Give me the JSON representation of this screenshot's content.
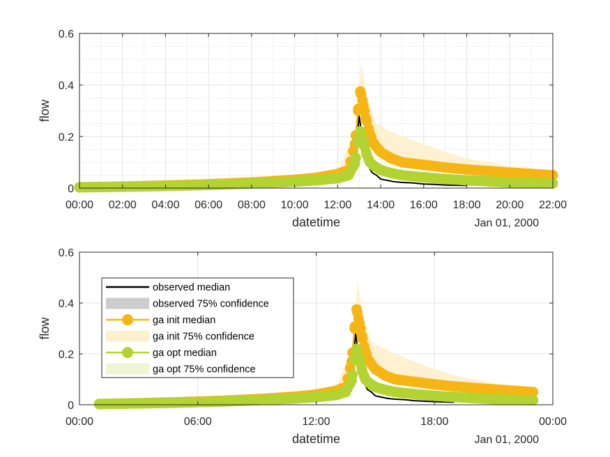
{
  "chart_data": [
    {
      "type": "line",
      "xlabel": "datetime",
      "ylabel": "flow",
      "x_secondary_label": "Jan 01, 2000",
      "x_unit": "hours",
      "xlim": [
        0,
        22
      ],
      "ylim": [
        0,
        0.6
      ],
      "xticks": [
        0,
        2,
        4,
        6,
        8,
        10,
        12,
        14,
        16,
        18,
        20,
        22
      ],
      "xtick_labels": [
        "00:00",
        "02:00",
        "04:00",
        "06:00",
        "08:00",
        "10:00",
        "12:00",
        "14:00",
        "16:00",
        "18:00",
        "20:00",
        "22:00"
      ],
      "yticks": [
        0,
        0.2,
        0.4,
        0.6
      ],
      "ytick_labels": [
        "0",
        "0.2",
        "0.4",
        "0.6"
      ],
      "grid": true,
      "minor_grid": true,
      "legend": null
    },
    {
      "type": "line",
      "xlabel": "datetime",
      "ylabel": "flow",
      "x_secondary_label": "Jan 01, 2000",
      "x_unit": "hours",
      "xlim": [
        0,
        24
      ],
      "ylim": [
        0,
        0.6
      ],
      "xticks": [
        0,
        6,
        12,
        18,
        24
      ],
      "xtick_labels": [
        "00:00",
        "06:00",
        "12:00",
        "18:00",
        "00:00"
      ],
      "yticks": [
        0,
        0.2,
        0.4,
        0.6
      ],
      "ytick_labels": [
        "0",
        "0.2",
        "0.4",
        "0.6"
      ],
      "grid": true,
      "minor_grid": false,
      "legend": {
        "placement": "upper-left",
        "entries": [
          {
            "label": "observed median",
            "kind": "line",
            "color": "#000000"
          },
          {
            "label": "observed 75% confidence",
            "kind": "patch",
            "color": "#cccccc"
          },
          {
            "label": "ga init median",
            "kind": "marker-line",
            "color": "#f5b515"
          },
          {
            "label": "ga init 75% confidence",
            "kind": "patch",
            "color": "#fdf0cf"
          },
          {
            "label": "ga opt median",
            "kind": "marker-line",
            "color": "#b3d333"
          },
          {
            "label": "ga opt 75% confidence",
            "kind": "patch",
            "color": "#eff5d3"
          }
        ]
      }
    }
  ],
  "series": {
    "observed_median": {
      "name": "observed median",
      "color": "#000000",
      "x": [
        0,
        2,
        4,
        6,
        8,
        10,
        11,
        12,
        12.5,
        12.8,
        13.0,
        13.2,
        13.4,
        13.6,
        13.8,
        14.0,
        14.3,
        14.6,
        15.0,
        15.5,
        16.0,
        16.5,
        17.0,
        18.0
      ],
      "y": [
        0.002,
        0.004,
        0.006,
        0.01,
        0.016,
        0.024,
        0.03,
        0.04,
        0.058,
        0.1,
        0.28,
        0.16,
        0.09,
        0.06,
        0.05,
        0.035,
        0.03,
        0.025,
        0.022,
        0.02,
        0.016,
        0.014,
        0.012,
        0.01
      ]
    },
    "ga_init_median": {
      "name": "ga init median",
      "color": "#f5b515",
      "x": [
        0,
        2,
        4,
        6,
        8,
        10,
        11,
        12,
        12.5,
        12.8,
        12.95,
        13.05,
        13.15,
        13.25,
        13.35,
        13.5,
        13.7,
        14.0,
        14.5,
        15.0,
        16.0,
        17.0,
        18.0,
        19.0,
        20.0,
        21.0,
        22.0
      ],
      "y": [
        0.003,
        0.006,
        0.01,
        0.015,
        0.022,
        0.032,
        0.04,
        0.055,
        0.07,
        0.17,
        0.3,
        0.375,
        0.34,
        0.3,
        0.26,
        0.21,
        0.17,
        0.14,
        0.115,
        0.1,
        0.09,
        0.08,
        0.072,
        0.066,
        0.06,
        0.055,
        0.05
      ]
    },
    "ga_opt_median": {
      "name": "ga opt median",
      "color": "#b3d333",
      "x": [
        0,
        2,
        4,
        6,
        8,
        10,
        11,
        12,
        12.5,
        12.8,
        12.95,
        13.05,
        13.15,
        13.25,
        13.35,
        13.5,
        13.7,
        14.0,
        14.5,
        15.0,
        16.0,
        17.0,
        18.0,
        19.0,
        20.0,
        21.0,
        22.0
      ],
      "y": [
        0.003,
        0.005,
        0.008,
        0.012,
        0.018,
        0.025,
        0.03,
        0.038,
        0.05,
        0.095,
        0.18,
        0.22,
        0.19,
        0.16,
        0.13,
        0.1,
        0.085,
        0.07,
        0.058,
        0.05,
        0.042,
        0.035,
        0.03,
        0.026,
        0.022,
        0.02,
        0.018
      ]
    },
    "ga_init_band": {
      "name": "ga init 75% confidence",
      "color": "#fdf0cf",
      "x": [
        0,
        10,
        12,
        12.8,
        13.1,
        13.4,
        13.8,
        14.2,
        15.0,
        16.0,
        17.0,
        18.0,
        20.0,
        22.0
      ],
      "lower": [
        0.002,
        0.025,
        0.045,
        0.13,
        0.25,
        0.23,
        0.15,
        0.12,
        0.095,
        0.08,
        0.07,
        0.062,
        0.052,
        0.045
      ],
      "upper": [
        0.004,
        0.04,
        0.065,
        0.22,
        0.49,
        0.34,
        0.25,
        0.23,
        0.2,
        0.17,
        0.14,
        0.115,
        0.085,
        0.065
      ]
    }
  }
}
